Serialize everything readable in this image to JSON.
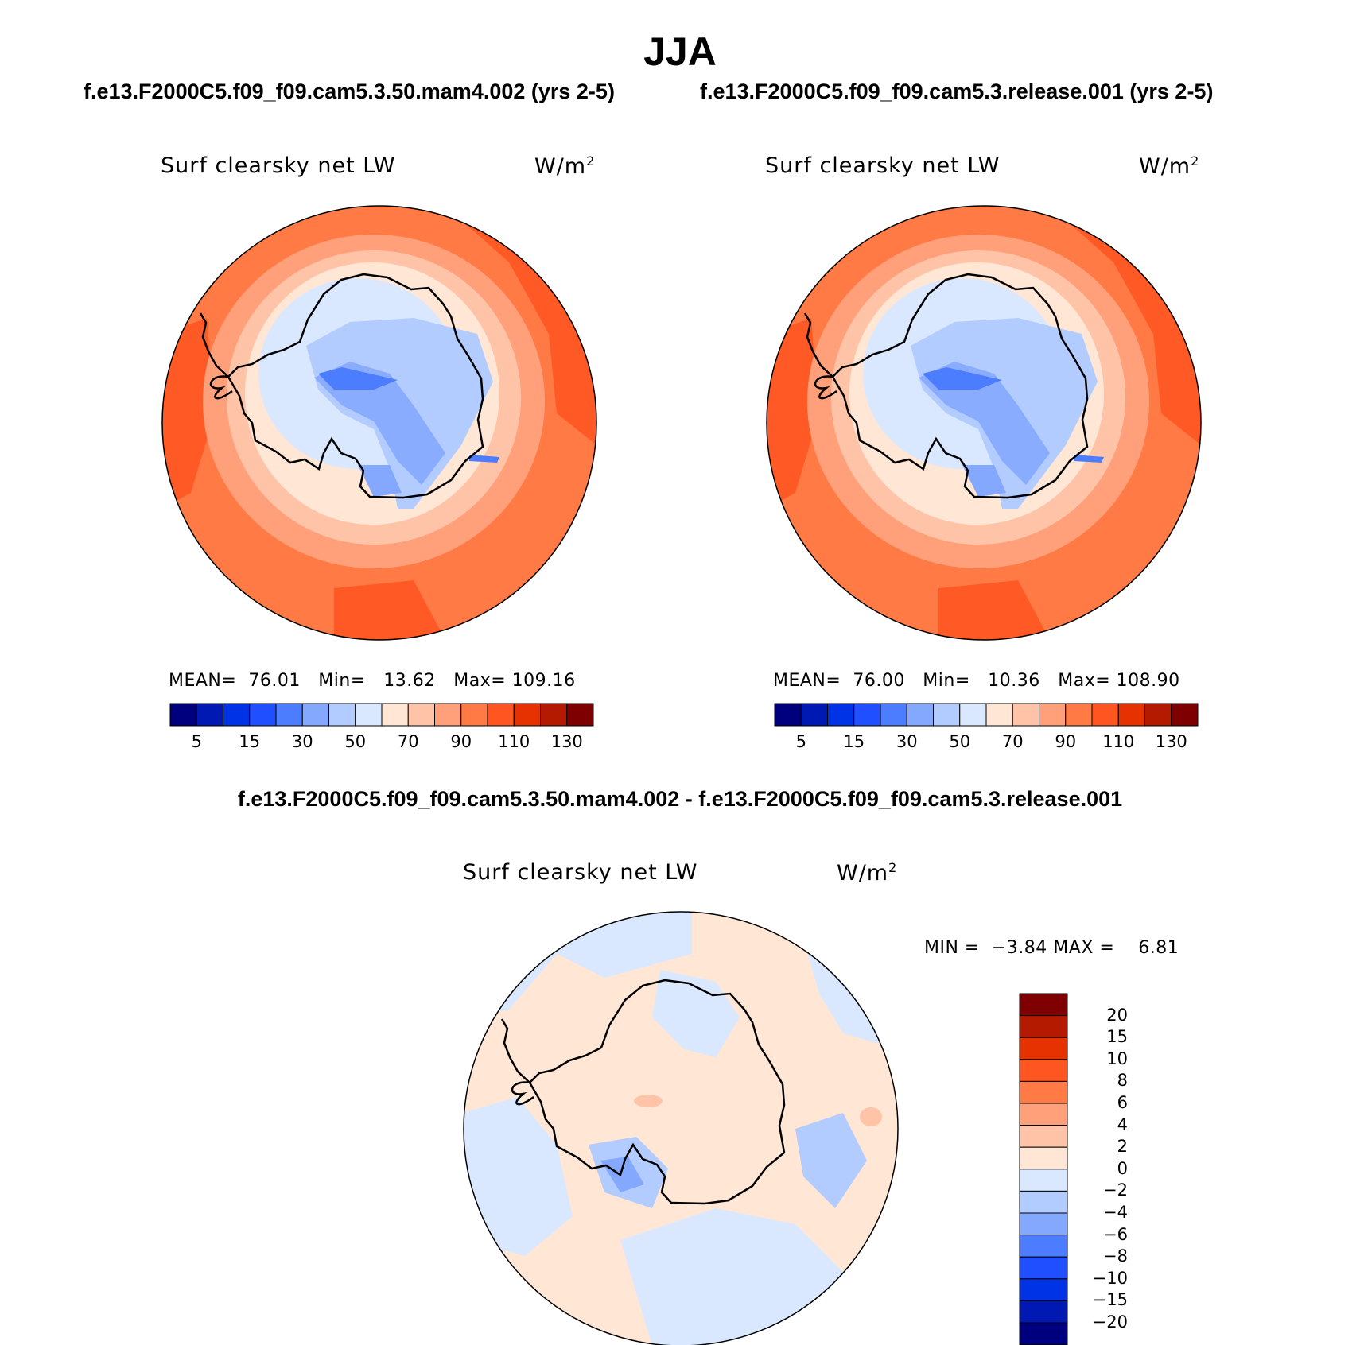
{
  "season": "JJA",
  "panels": [
    {
      "case_title": "f.e13.F2000C5.f09_f09.cam5.3.50.mam4.002 (yrs 2-5)",
      "variable": "Surf clearsky net LW",
      "units": "W/m",
      "units_exp": "2",
      "stats": {
        "mean_label": "MEAN=",
        "mean": "76.01",
        "min_label": "Min=",
        "min": "13.62",
        "max_label": "Max=",
        "max": "109.16"
      }
    },
    {
      "case_title": "f.e13.F2000C5.f09_f09.cam5.3.release.001 (yrs 2-5)",
      "variable": "Surf clearsky net LW",
      "units": "W/m",
      "units_exp": "2",
      "stats": {
        "mean_label": "MEAN=",
        "mean": "76.00",
        "min_label": "Min=",
        "min": "10.36",
        "max_label": "Max=",
        "max": "108.90"
      }
    }
  ],
  "colorbar": {
    "tick_labels": [
      "5",
      "15",
      "30",
      "50",
      "70",
      "90",
      "110",
      "130"
    ],
    "colors": [
      "#00007f",
      "#0019b2",
      "#0033e5",
      "#1f4fff",
      "#4c7dff",
      "#85a8ff",
      "#b3ccff",
      "#d9e8ff",
      "#ffe6d5",
      "#ffc4a8",
      "#ffa07a",
      "#ff7a45",
      "#ff5520",
      "#e53200",
      "#b31a00",
      "#7f0000"
    ]
  },
  "difference": {
    "title": "f.e13.F2000C5.f09_f09.cam5.3.50.mam4.002 - f.e13.F2000C5.f09_f09.cam5.3.release.001",
    "variable": "Surf clearsky net LW",
    "units": "W/m",
    "units_exp": "2",
    "min_label": "MIN =",
    "min": "−3.84",
    "max_label": "MAX =",
    "max": "6.81",
    "colorbar": {
      "tick_labels": [
        "20",
        "15",
        "10",
        "8",
        "6",
        "4",
        "2",
        "0",
        "−2",
        "−4",
        "−6",
        "−8",
        "−10",
        "−15",
        "−20"
      ],
      "colors": [
        "#7f0000",
        "#b31a00",
        "#e53200",
        "#ff5520",
        "#ff7a45",
        "#ffa07a",
        "#ffc4a8",
        "#ffe6d5",
        "#d9e8ff",
        "#b3ccff",
        "#85a8ff",
        "#4c7dff",
        "#1f4fff",
        "#0033e5",
        "#0019b2",
        "#00007f"
      ]
    }
  }
}
